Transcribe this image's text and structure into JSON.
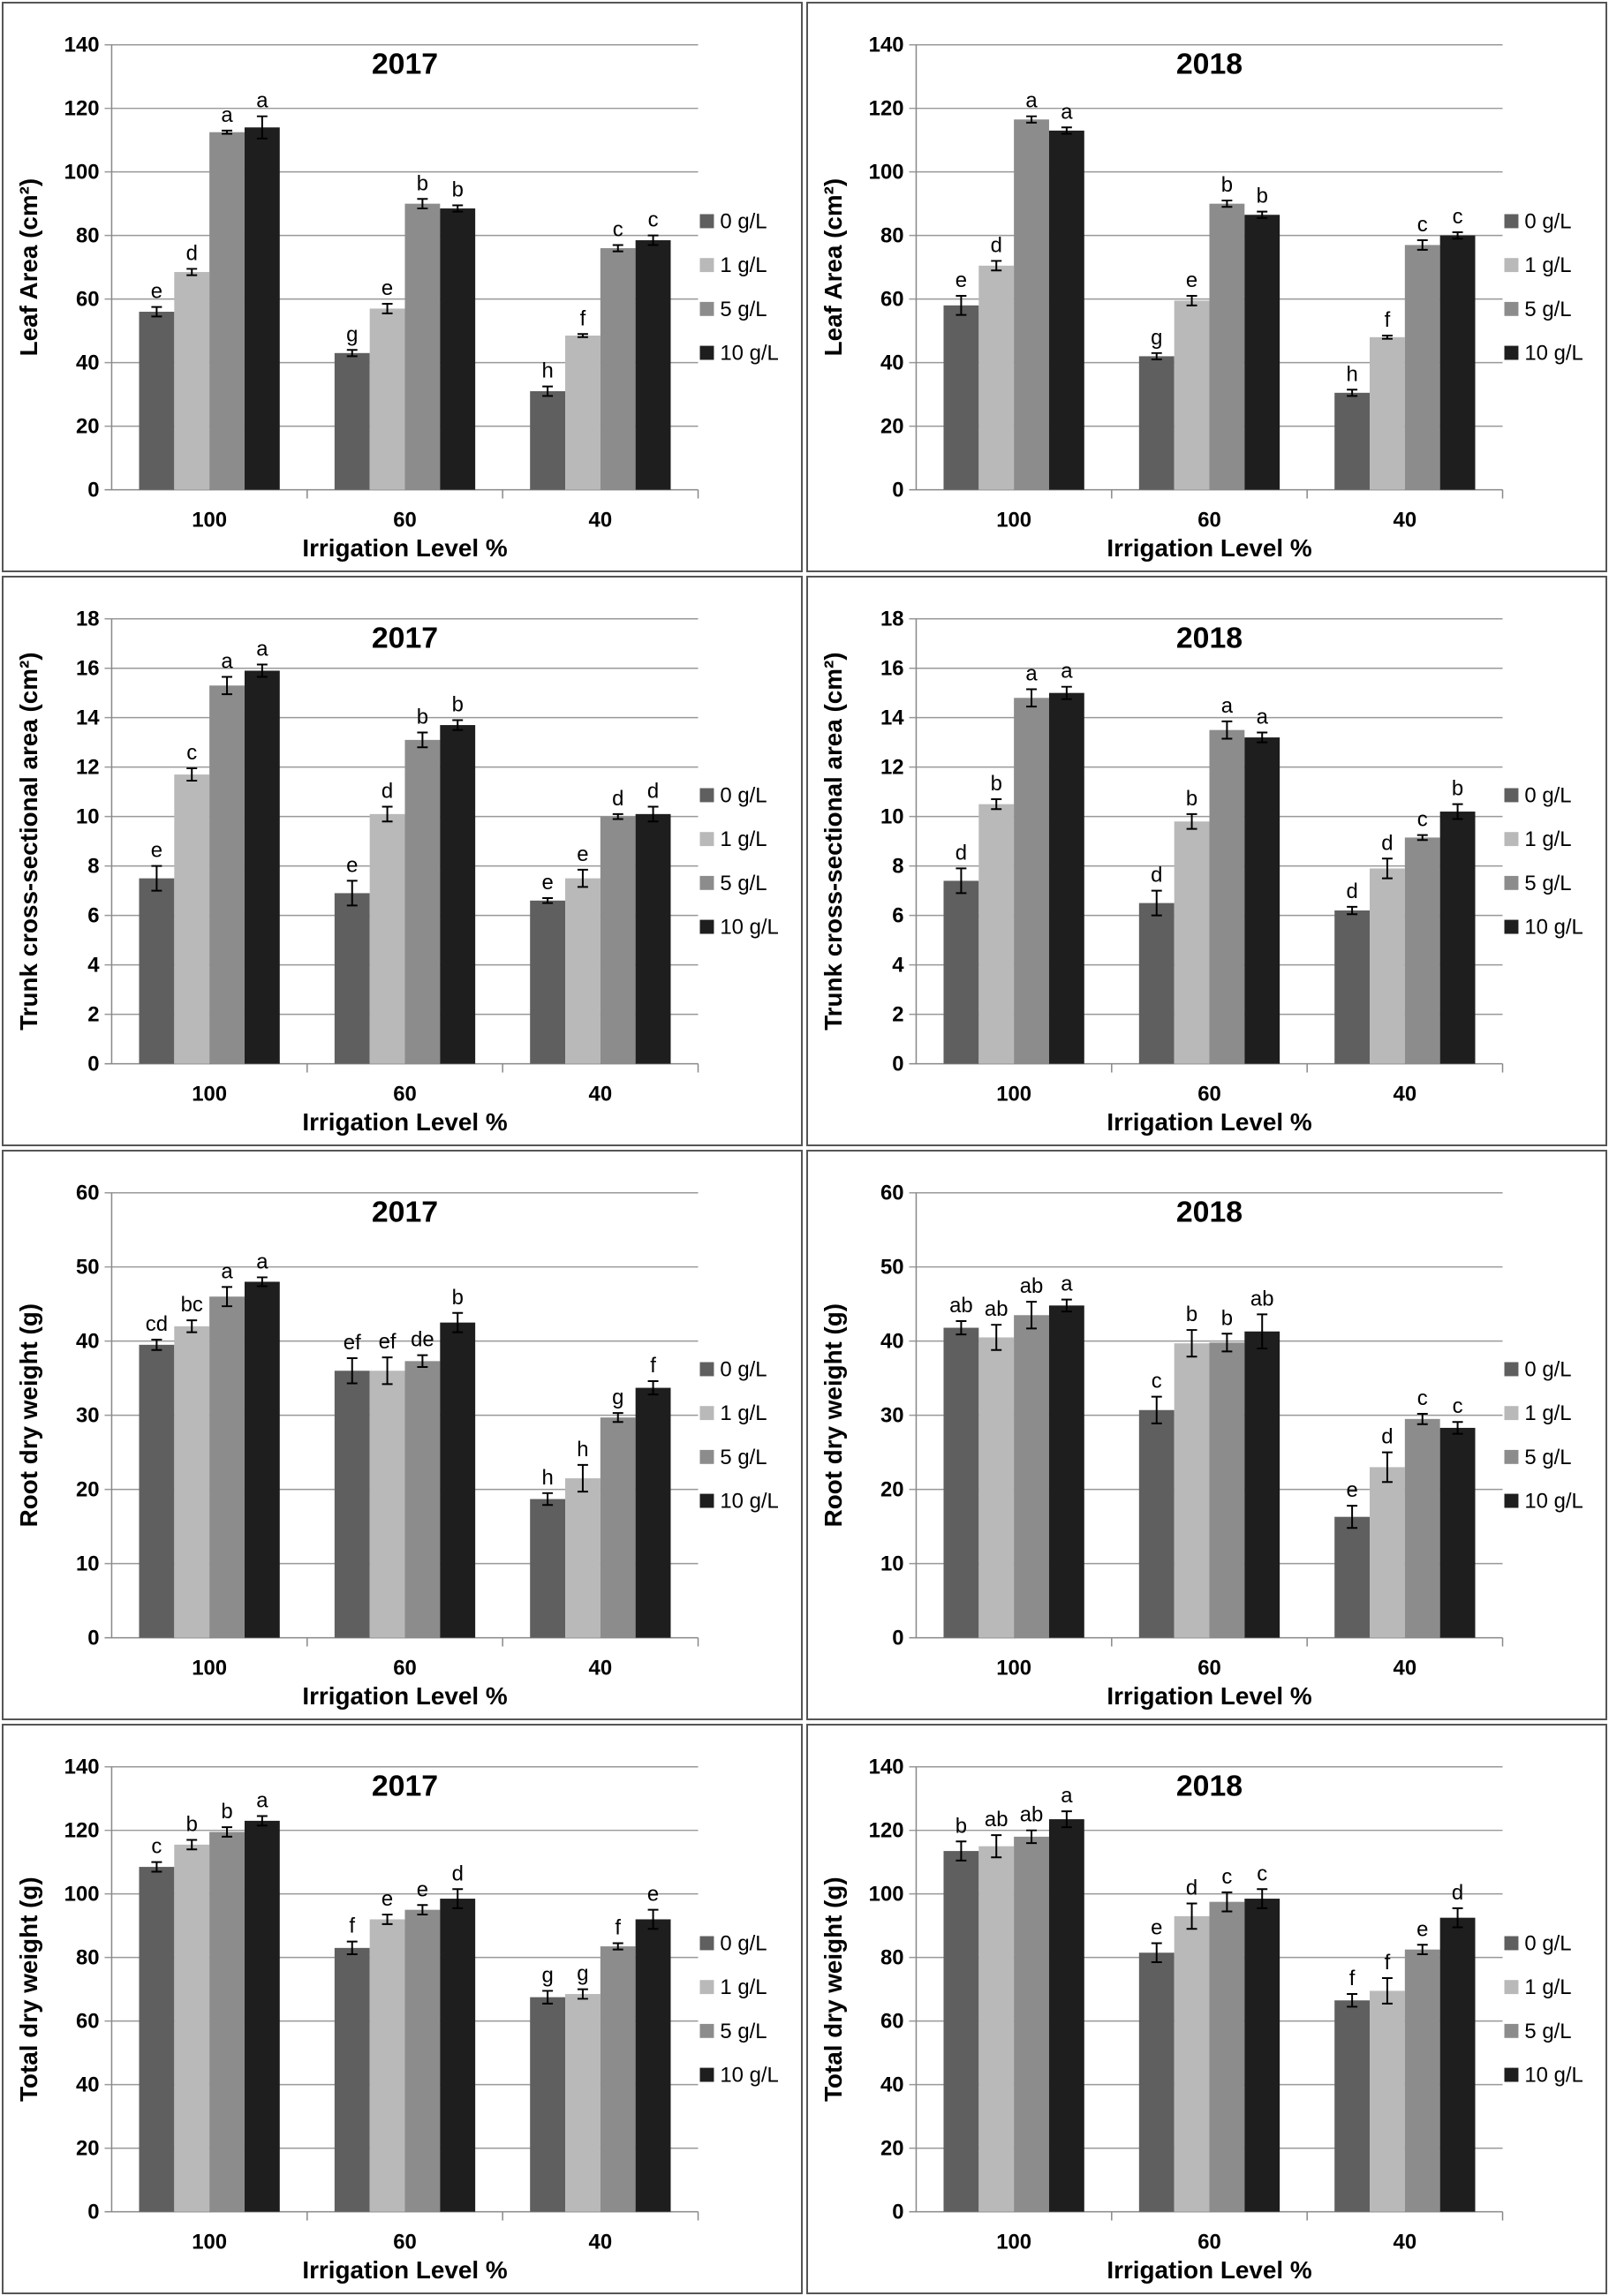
{
  "legend": [
    "0 g/L",
    "1 g/L",
    "5 g/L",
    "10 g/L"
  ],
  "colors": [
    "#5f5f5f",
    "#b9b9b9",
    "#8c8c8c",
    "#1e1e1e"
  ],
  "chart_data": [
    {
      "type": "bar",
      "title": "2017",
      "xlabel": "Irrigation Level %",
      "ylabel": "Leaf Area (cm²)",
      "ylim": [
        0,
        140
      ],
      "ystep": 20,
      "grid": true,
      "legend": "right",
      "categories": [
        "100",
        "60",
        "40"
      ],
      "series": [
        {
          "name": "0 g/L",
          "values": [
            56,
            43,
            31
          ],
          "errors": [
            1.5,
            1,
            1.5
          ],
          "letters": [
            "e",
            "g",
            "h"
          ]
        },
        {
          "name": "1 g/L",
          "values": [
            68.5,
            57,
            48.5
          ],
          "errors": [
            1,
            1.5,
            0.5
          ],
          "letters": [
            "d",
            "e",
            "f"
          ]
        },
        {
          "name": "5 g/L",
          "values": [
            112.5,
            90,
            76
          ],
          "errors": [
            0.5,
            1.5,
            1
          ],
          "letters": [
            "a",
            "b",
            "c"
          ]
        },
        {
          "name": "10 g/L",
          "values": [
            114,
            88.5,
            78.5
          ],
          "errors": [
            3.5,
            1,
            1.5
          ],
          "letters": [
            "a",
            "b",
            "c"
          ]
        }
      ]
    },
    {
      "type": "bar",
      "title": "2018",
      "xlabel": "Irrigation Level %",
      "ylabel": "Leaf Area (cm²)",
      "ylim": [
        0,
        140
      ],
      "ystep": 20,
      "grid": true,
      "legend": "right",
      "categories": [
        "100",
        "60",
        "40"
      ],
      "series": [
        {
          "name": "0 g/L",
          "values": [
            58,
            42,
            30.5
          ],
          "errors": [
            3,
            1,
            1
          ],
          "letters": [
            "e",
            "g",
            "h"
          ]
        },
        {
          "name": "1 g/L",
          "values": [
            70.5,
            59.5,
            48
          ],
          "errors": [
            1.5,
            1.5,
            0.5
          ],
          "letters": [
            "d",
            "e",
            "f"
          ]
        },
        {
          "name": "5 g/L",
          "values": [
            116.5,
            90,
            77
          ],
          "errors": [
            1,
            1,
            1.5
          ],
          "letters": [
            "a",
            "b",
            "c"
          ]
        },
        {
          "name": "10 g/L",
          "values": [
            113,
            86.5,
            80
          ],
          "errors": [
            1,
            1,
            1
          ],
          "letters": [
            "a",
            "b",
            "c"
          ]
        }
      ]
    },
    {
      "type": "bar",
      "title": "2017",
      "xlabel": "Irrigation Level %",
      "ylabel": "Trunk cross-sectional area (cm²)",
      "ylim": [
        0,
        18
      ],
      "ystep": 2,
      "grid": true,
      "legend": "right",
      "categories": [
        "100",
        "60",
        "40"
      ],
      "series": [
        {
          "name": "0 g/L",
          "values": [
            7.5,
            6.9,
            6.6
          ],
          "errors": [
            0.5,
            0.5,
            0.1
          ],
          "letters": [
            "e",
            "e",
            "e"
          ]
        },
        {
          "name": "1 g/L",
          "values": [
            11.7,
            10.1,
            7.5
          ],
          "errors": [
            0.25,
            0.3,
            0.35
          ],
          "letters": [
            "c",
            "d",
            "e"
          ]
        },
        {
          "name": "5 g/L",
          "values": [
            15.3,
            13.1,
            10.0
          ],
          "errors": [
            0.35,
            0.3,
            0.1
          ],
          "letters": [
            "a",
            "b",
            "d"
          ]
        },
        {
          "name": "10 g/L",
          "values": [
            15.9,
            13.7,
            10.1
          ],
          "errors": [
            0.25,
            0.2,
            0.3
          ],
          "letters": [
            "a",
            "b",
            "d"
          ]
        }
      ]
    },
    {
      "type": "bar",
      "title": "2018",
      "xlabel": "Irrigation Level %",
      "ylabel": "Trunk cross-sectional area (cm²)",
      "ylim": [
        0,
        18
      ],
      "ystep": 2,
      "grid": true,
      "legend": "right",
      "categories": [
        "100",
        "60",
        "40"
      ],
      "series": [
        {
          "name": "0 g/L",
          "values": [
            7.4,
            6.5,
            6.2
          ],
          "errors": [
            0.5,
            0.5,
            0.15
          ],
          "letters": [
            "d",
            "d",
            "d"
          ]
        },
        {
          "name": "1 g/L",
          "values": [
            10.5,
            9.8,
            7.9
          ],
          "errors": [
            0.2,
            0.3,
            0.4
          ],
          "letters": [
            "b",
            "b",
            "d"
          ]
        },
        {
          "name": "5 g/L",
          "values": [
            14.8,
            13.5,
            9.15
          ],
          "errors": [
            0.35,
            0.35,
            0.1
          ],
          "letters": [
            "a",
            "a",
            "c"
          ]
        },
        {
          "name": "10 g/L",
          "values": [
            15.0,
            13.2,
            10.2
          ],
          "errors": [
            0.25,
            0.2,
            0.3
          ],
          "letters": [
            "a",
            "a",
            "b"
          ]
        }
      ]
    },
    {
      "type": "bar",
      "title": "2017",
      "xlabel": "Irrigation Level %",
      "ylabel": "Root dry weight (g)",
      "ylim": [
        0,
        60
      ],
      "ystep": 10,
      "grid": true,
      "legend": "right",
      "categories": [
        "100",
        "60",
        "40"
      ],
      "series": [
        {
          "name": "0 g/L",
          "values": [
            39.5,
            36,
            18.7
          ],
          "errors": [
            0.7,
            1.7,
            0.8
          ],
          "letters": [
            "cd",
            "ef",
            "h"
          ]
        },
        {
          "name": "1 g/L",
          "values": [
            42,
            36,
            21.5
          ],
          "errors": [
            0.8,
            1.8,
            1.8
          ],
          "letters": [
            "bc",
            "ef",
            "h"
          ]
        },
        {
          "name": "5 g/L",
          "values": [
            46,
            37.3,
            29.7
          ],
          "errors": [
            1.3,
            0.8,
            0.6
          ],
          "letters": [
            "a",
            "de",
            "g"
          ]
        },
        {
          "name": "10 g/L",
          "values": [
            48,
            42.5,
            33.7
          ],
          "errors": [
            0.6,
            1.3,
            0.9
          ],
          "letters": [
            "a",
            "b",
            "f"
          ]
        }
      ]
    },
    {
      "type": "bar",
      "title": "2018",
      "xlabel": "Irrigation Level %",
      "ylabel": "Root dry weight (g)",
      "ylim": [
        0,
        60
      ],
      "ystep": 10,
      "grid": true,
      "legend": "right",
      "categories": [
        "100",
        "60",
        "40"
      ],
      "series": [
        {
          "name": "0 g/L",
          "values": [
            41.8,
            30.7,
            16.3
          ],
          "errors": [
            0.9,
            1.8,
            1.5
          ],
          "letters": [
            "ab",
            "c",
            "e"
          ]
        },
        {
          "name": "1 g/L",
          "values": [
            40.5,
            39.7,
            23
          ],
          "errors": [
            1.7,
            1.8,
            2
          ],
          "letters": [
            "ab",
            "b",
            "d"
          ]
        },
        {
          "name": "5 g/L",
          "values": [
            43.5,
            39.8,
            29.5
          ],
          "errors": [
            1.8,
            1.2,
            0.7
          ],
          "letters": [
            "ab",
            "b",
            "c"
          ]
        },
        {
          "name": "10 g/L",
          "values": [
            44.8,
            41.3,
            28.3
          ],
          "errors": [
            0.8,
            2.3,
            0.8
          ],
          "letters": [
            "a",
            "ab",
            "c"
          ]
        }
      ]
    },
    {
      "type": "bar",
      "title": "2017",
      "xlabel": "Irrigation Level %",
      "ylabel": "Total dry weight (g)",
      "ylim": [
        0,
        140
      ],
      "ystep": 20,
      "grid": true,
      "legend": "right",
      "categories": [
        "100",
        "60",
        "40"
      ],
      "series": [
        {
          "name": "0 g/L",
          "values": [
            108.5,
            83,
            67.5
          ],
          "errors": [
            1.5,
            2,
            2
          ],
          "letters": [
            "c",
            "f",
            "g"
          ]
        },
        {
          "name": "1 g/L",
          "values": [
            115.5,
            92,
            68.5
          ],
          "errors": [
            1.5,
            1.5,
            1.5
          ],
          "letters": [
            "b",
            "e",
            "g"
          ]
        },
        {
          "name": "5 g/L",
          "values": [
            119.5,
            95,
            83.5
          ],
          "errors": [
            1.5,
            1.5,
            1
          ],
          "letters": [
            "b",
            "e",
            "f"
          ]
        },
        {
          "name": "10 g/L",
          "values": [
            123,
            98.5,
            92
          ],
          "errors": [
            1.5,
            3,
            3
          ],
          "letters": [
            "a",
            "d",
            "e"
          ]
        }
      ]
    },
    {
      "type": "bar",
      "title": "2018",
      "xlabel": "Irrigation Level %",
      "ylabel": "Total dry weight (g)",
      "ylim": [
        0,
        140
      ],
      "ystep": 20,
      "grid": true,
      "legend": "right",
      "categories": [
        "100",
        "60",
        "40"
      ],
      "series": [
        {
          "name": "0 g/L",
          "values": [
            113.5,
            81.5,
            66.5
          ],
          "errors": [
            3,
            3,
            2
          ],
          "letters": [
            "b",
            "e",
            "f"
          ]
        },
        {
          "name": "1 g/L",
          "values": [
            115,
            93,
            69.5
          ],
          "errors": [
            3.5,
            4,
            4
          ],
          "letters": [
            "ab",
            "d",
            "f"
          ]
        },
        {
          "name": "5 g/L",
          "values": [
            118,
            97.5,
            82.5
          ],
          "errors": [
            2,
            3,
            1.5
          ],
          "letters": [
            "ab",
            "c",
            "e"
          ]
        },
        {
          "name": "10 g/L",
          "values": [
            123.5,
            98.5,
            92.5
          ],
          "errors": [
            2.5,
            3,
            3
          ],
          "letters": [
            "a",
            "c",
            "d"
          ]
        }
      ]
    }
  ]
}
